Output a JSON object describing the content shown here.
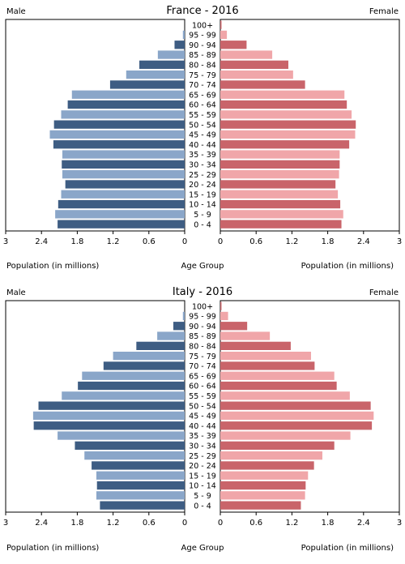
{
  "chart_data": [
    {
      "type": "bar",
      "title": "France - 2016",
      "left_label": "Male",
      "right_label": "Female",
      "xlabel_left": "Population (in millions)",
      "xlabel_center": "Age Group",
      "xlabel_right": "Population (in millions)",
      "xlim": [
        0,
        3
      ],
      "xticks": [
        "3",
        "2.4",
        "1.8",
        "1.2",
        "0.6",
        "0",
        "0",
        "0.6",
        "1.2",
        "1.8",
        "2.4",
        "3"
      ],
      "categories": [
        "100+",
        "95 - 99",
        "90 - 94",
        "85 - 89",
        "80 - 84",
        "75 - 79",
        "70 - 74",
        "65 - 69",
        "60 - 64",
        "55 - 59",
        "50 - 54",
        "45 - 49",
        "40 - 44",
        "35 - 39",
        "30 - 34",
        "25 - 29",
        "20 - 24",
        "15 - 19",
        "10 - 14",
        "5 - 9",
        "0 - 4"
      ],
      "series": [
        {
          "name": "Male",
          "values": [
            0.0,
            0.03,
            0.17,
            0.45,
            0.76,
            0.98,
            1.25,
            1.89,
            1.96,
            2.07,
            2.19,
            2.26,
            2.2,
            2.05,
            2.06,
            2.05,
            2.0,
            2.07,
            2.12,
            2.17,
            2.13
          ]
        },
        {
          "name": "Female",
          "values": [
            0.02,
            0.11,
            0.44,
            0.87,
            1.14,
            1.22,
            1.42,
            2.08,
            2.12,
            2.2,
            2.27,
            2.26,
            2.16,
            2.0,
            2.0,
            1.99,
            1.93,
            1.97,
            2.01,
            2.06,
            2.03
          ]
        }
      ],
      "colors": {
        "male_dark": "#3e5d83",
        "male_light": "#8aa6c9",
        "female_dark": "#c9646a",
        "female_light": "#f0a6a9"
      }
    },
    {
      "type": "bar",
      "title": "Italy - 2016",
      "left_label": "Male",
      "right_label": "Female",
      "xlabel_left": "Population (in millions)",
      "xlabel_center": "Age Group",
      "xlabel_right": "Population (in millions)",
      "xlim": [
        0,
        3
      ],
      "xticks": [
        "3",
        "2.4",
        "1.8",
        "1.2",
        "0.6",
        "0",
        "0",
        "0.6",
        "1.2",
        "1.8",
        "2.4",
        "3"
      ],
      "categories": [
        "100+",
        "95 - 99",
        "90 - 94",
        "85 - 89",
        "80 - 84",
        "75 - 79",
        "70 - 74",
        "65 - 69",
        "60 - 64",
        "55 - 59",
        "50 - 54",
        "45 - 49",
        "40 - 44",
        "35 - 39",
        "30 - 34",
        "25 - 29",
        "20 - 24",
        "15 - 19",
        "10 - 14",
        "5 - 9",
        "0 - 4"
      ],
      "series": [
        {
          "name": "Male",
          "values": [
            0.0,
            0.03,
            0.19,
            0.46,
            0.81,
            1.2,
            1.36,
            1.72,
            1.79,
            2.06,
            2.45,
            2.54,
            2.53,
            2.13,
            1.84,
            1.68,
            1.56,
            1.48,
            1.47,
            1.48,
            1.42
          ]
        },
        {
          "name": "Female",
          "values": [
            0.02,
            0.13,
            0.45,
            0.83,
            1.18,
            1.52,
            1.58,
            1.91,
            1.95,
            2.17,
            2.52,
            2.57,
            2.54,
            2.18,
            1.91,
            1.71,
            1.57,
            1.47,
            1.43,
            1.42,
            1.35
          ]
        }
      ],
      "colors": {
        "male_dark": "#3e5d83",
        "male_light": "#8aa6c9",
        "female_dark": "#c9646a",
        "female_light": "#f0a6a9"
      }
    }
  ]
}
